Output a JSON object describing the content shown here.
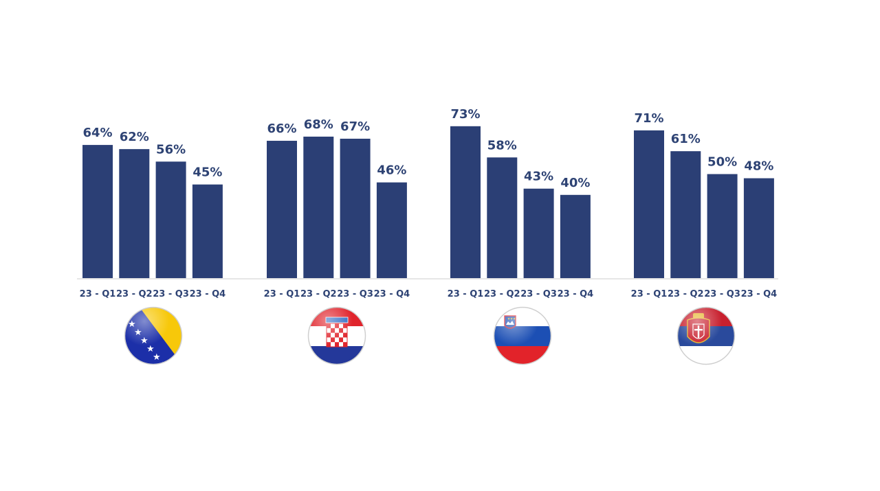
{
  "chart_data": {
    "type": "bar",
    "title": "",
    "xlabel": "",
    "ylabel": "",
    "ylim": [
      0,
      100
    ],
    "grid": false,
    "bar_color": "#2b3f75",
    "label_color": "#2e4374",
    "value_suffix": "%",
    "groups": [
      {
        "flag": "bosnia-herzegovina-flag-icon",
        "categories": [
          "23 - Q1",
          "23 - Q2",
          "23 - Q3",
          "23 - Q4"
        ],
        "values": [
          64,
          62,
          56,
          45
        ]
      },
      {
        "flag": "croatia-flag-icon",
        "categories": [
          "23 - Q1",
          "23 - Q2",
          "23 - Q3",
          "23 - Q4"
        ],
        "values": [
          66,
          68,
          67,
          46
        ]
      },
      {
        "flag": "slovenia-flag-icon",
        "categories": [
          "23 - Q1",
          "23 - Q2",
          "23 - Q3",
          "23 - Q4"
        ],
        "values": [
          73,
          58,
          43,
          40
        ]
      },
      {
        "flag": "serbia-flag-icon",
        "categories": [
          "23 - Q1",
          "23 - Q2",
          "23 - Q3",
          "23 - Q4"
        ],
        "values": [
          71,
          61,
          50,
          48
        ]
      }
    ]
  }
}
